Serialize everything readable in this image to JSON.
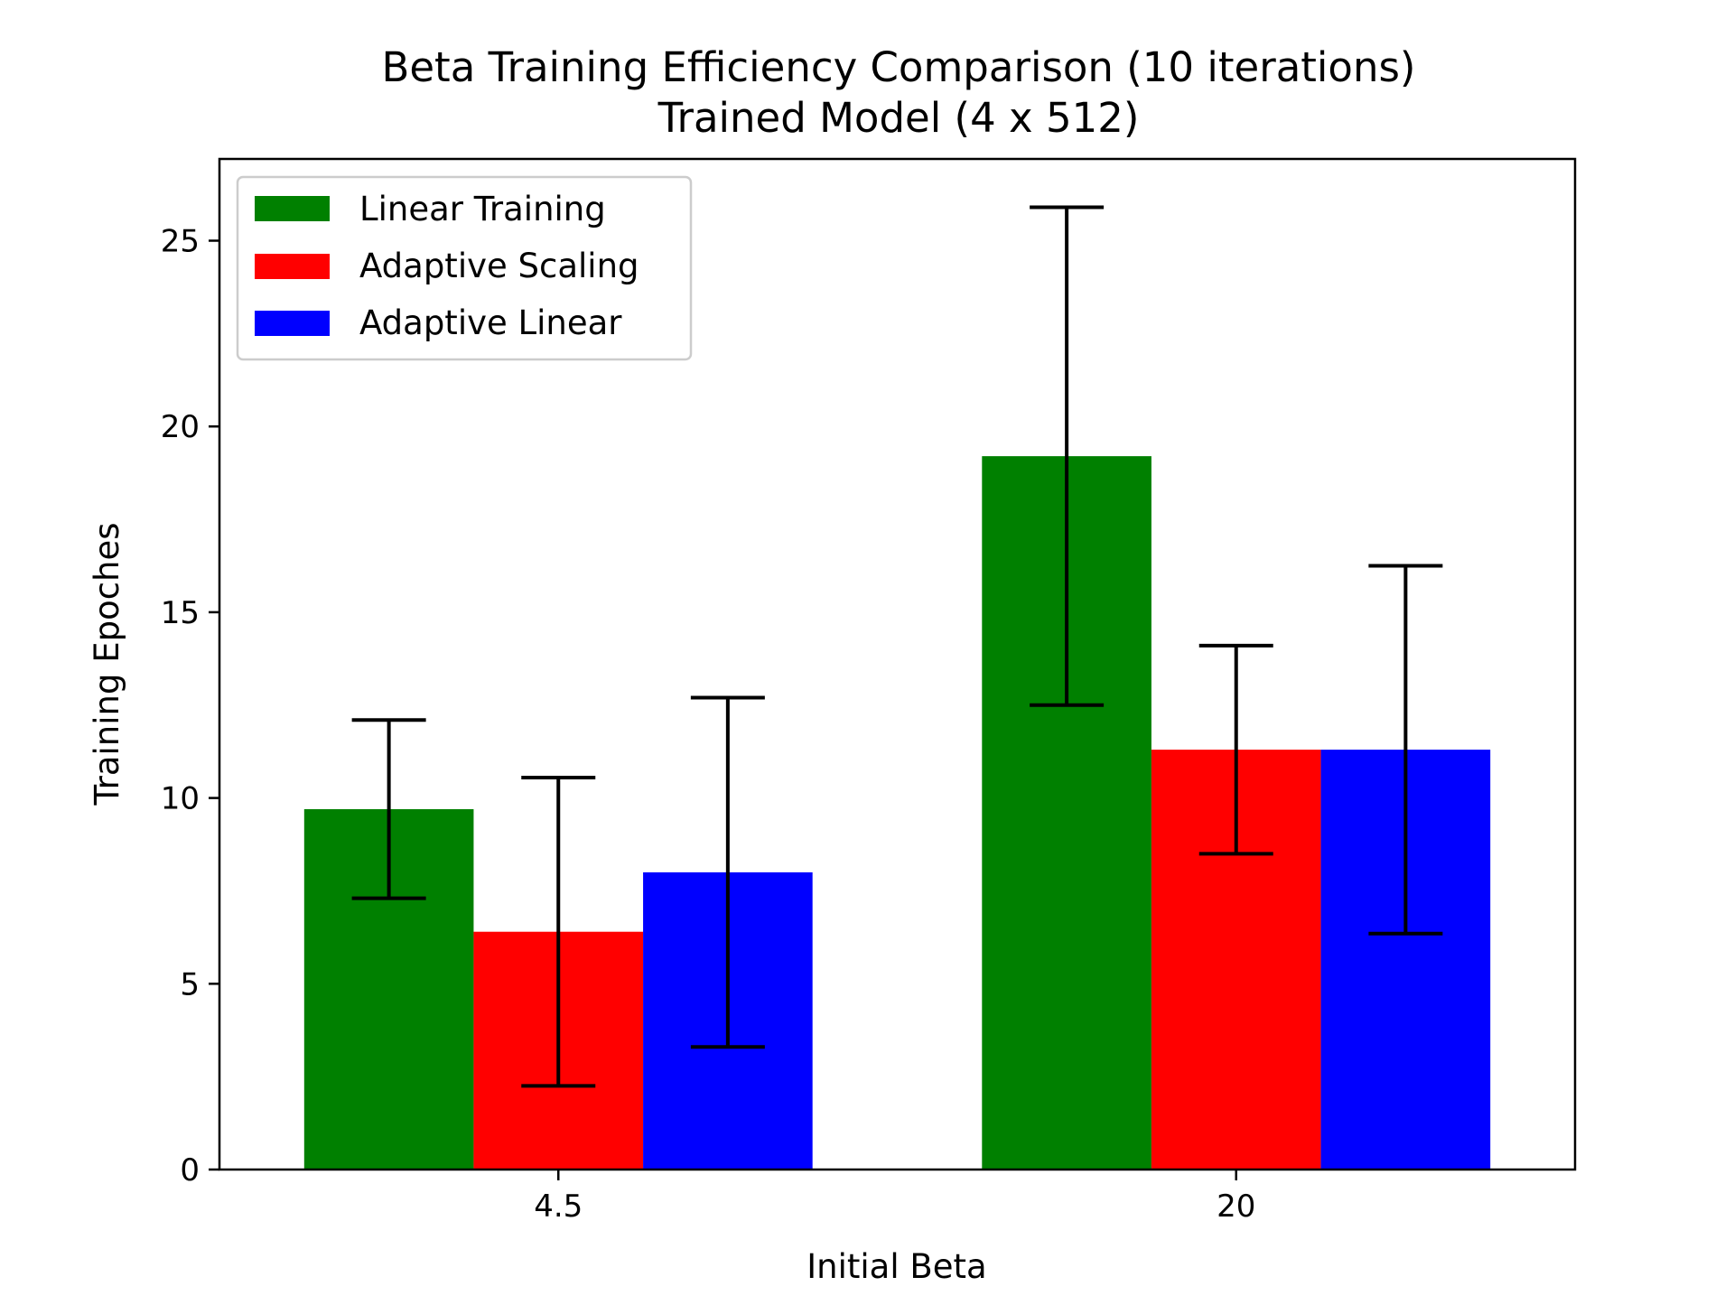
{
  "chart_data": {
    "type": "bar",
    "title": "Beta Training Efficiency Comparison (10 iterations)",
    "subtitle": "Trained Model (4 x 512)",
    "xlabel": "Initial Beta",
    "ylabel": "Training Epoches",
    "categories": [
      "4.5",
      "20"
    ],
    "ylim": [
      0,
      27.2
    ],
    "yticks": [
      0,
      5,
      10,
      15,
      20,
      25
    ],
    "ytick_labels": [
      "0",
      "5",
      "10",
      "15",
      "20",
      "25"
    ],
    "grid": false,
    "legend_position": "upper-left",
    "error_bars": true,
    "series": [
      {
        "name": "Linear Training",
        "color": "#008000",
        "values": [
          9.7,
          19.2
        ],
        "errors": [
          2.4,
          6.7
        ]
      },
      {
        "name": "Adaptive Scaling",
        "color": "#ff0000",
        "values": [
          6.4,
          11.3
        ],
        "errors": [
          4.15,
          2.8
        ]
      },
      {
        "name": "Adaptive Linear",
        "color": "#0000ff",
        "values": [
          8.0,
          11.3
        ],
        "errors": [
          4.7,
          4.95
        ]
      }
    ]
  }
}
